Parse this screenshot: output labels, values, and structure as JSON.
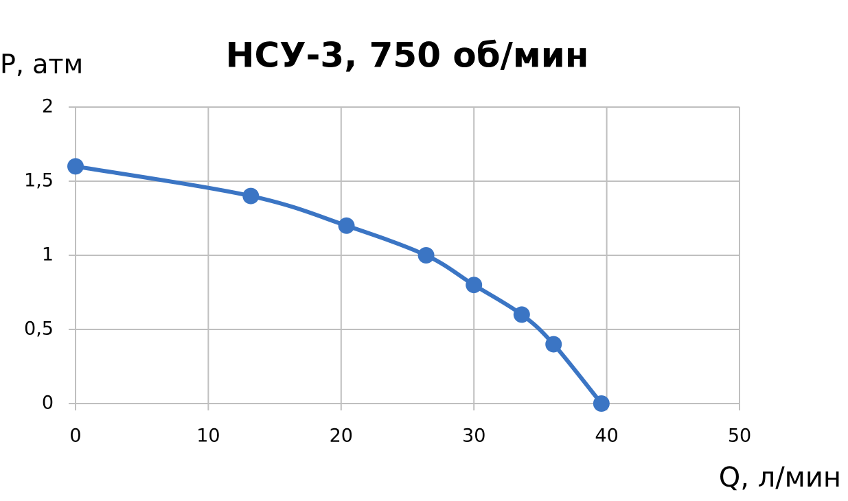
{
  "chart_data": {
    "type": "scatter",
    "title": "НСУ-3, 750 об/мин",
    "x_label": "Q, л/мин",
    "y_label": "P, атм",
    "series": [
      {
        "color": "#3b75c4",
        "x": [
          0,
          13.2,
          20.4,
          26.4,
          30,
          33.6,
          36,
          39.6
        ],
        "values": [
          1.6,
          1.4,
          1.2,
          1.0,
          0.8,
          0.6,
          0.4,
          0
        ]
      }
    ],
    "line": "smooth",
    "xlim": [
      0,
      50
    ],
    "xticks": [
      0,
      10,
      20,
      30,
      40,
      50
    ],
    "ylim": [
      0,
      2
    ],
    "yticks": [
      0,
      {
        "value": 0.5,
        "label": "0,5"
      },
      1,
      {
        "value": 1.5,
        "label": "1,5"
      },
      2
    ],
    "grid": true
  }
}
